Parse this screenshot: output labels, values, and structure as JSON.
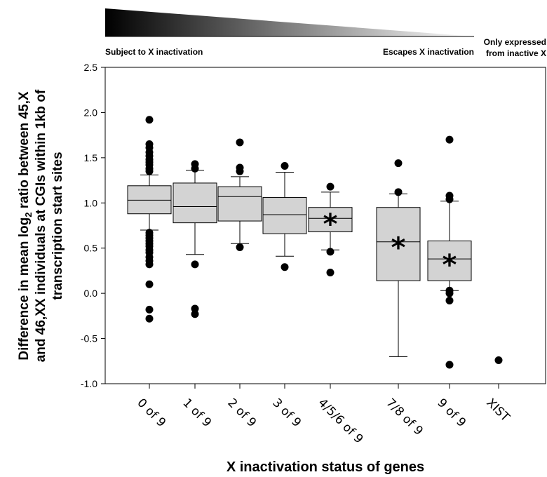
{
  "gradient_bar": {
    "left_label": "Subject to X inactivation",
    "right_label": "Escapes X inactivation",
    "far_right_line1": "Only expressed",
    "far_right_line2": "from inactive X",
    "color_start": "#000000",
    "color_end": "#ffffff"
  },
  "chart_data": {
    "type": "box",
    "ylabel_line1_prefix": "Difference in mean log",
    "ylabel_line1_sub": "2",
    "ylabel_line1_suffix": " ratio between 45,X",
    "ylabel_line2": "and 46,XX individuals at CGIs within 1kb of",
    "ylabel_line3": "transcription start sites",
    "xlabel": "X inactivation status of genes",
    "ylim": [
      -1.0,
      2.5
    ],
    "yticks": [
      "2.5",
      "2.0",
      "1.5",
      "1.0",
      "0.5",
      "0.0",
      "-0.5",
      "-1.0"
    ],
    "ytick_values": [
      2.5,
      2.0,
      1.5,
      1.0,
      0.5,
      0.0,
      -0.5,
      -1.0
    ],
    "categories": [
      "0 of 9",
      "1 of 9",
      "2 of 9",
      "3 of 9",
      "4/5/6 of 9",
      "7/8 of 9",
      "9 of 9",
      "XIST"
    ],
    "box_color": "#d3d3d3",
    "boxes": [
      {
        "category": "0 of 9",
        "whisker_low": 0.7,
        "q1": 0.88,
        "median": 1.03,
        "q3": 1.19,
        "whisker_high": 1.31,
        "significant": false,
        "outliers": [
          1.92,
          1.65,
          1.61,
          1.56,
          1.52,
          1.48,
          1.45,
          1.42,
          1.38,
          1.35,
          0.67,
          0.64,
          0.61,
          0.58,
          0.55,
          0.52,
          0.48,
          0.45,
          0.4,
          0.36,
          0.32,
          0.1,
          -0.18,
          -0.28
        ]
      },
      {
        "category": "1 of 9",
        "whisker_low": 0.43,
        "q1": 0.78,
        "median": 0.96,
        "q3": 1.22,
        "whisker_high": 1.36,
        "significant": false,
        "outliers": [
          1.43,
          1.38,
          0.32,
          -0.17,
          -0.23
        ]
      },
      {
        "category": "2 of 9",
        "whisker_low": 0.55,
        "q1": 0.8,
        "median": 1.07,
        "q3": 1.18,
        "whisker_high": 1.29,
        "significant": false,
        "outliers": [
          1.67,
          1.39,
          1.35,
          0.51
        ]
      },
      {
        "category": "3 of 9",
        "whisker_low": 0.41,
        "q1": 0.66,
        "median": 0.87,
        "q3": 1.06,
        "whisker_high": 1.34,
        "significant": false,
        "outliers": [
          1.41,
          0.29
        ]
      },
      {
        "category": "4/5/6 of 9",
        "whisker_low": 0.48,
        "q1": 0.68,
        "median": 0.83,
        "q3": 0.95,
        "whisker_high": 1.12,
        "significant": true,
        "outliers": [
          1.18,
          0.46,
          0.23
        ]
      },
      {
        "category": "7/8 of 9",
        "whisker_low": -0.7,
        "q1": 0.14,
        "median": 0.57,
        "q3": 0.95,
        "whisker_high": 1.1,
        "significant": true,
        "outliers": [
          1.44,
          1.12
        ]
      },
      {
        "category": "9 of 9",
        "whisker_low": 0.03,
        "q1": 0.14,
        "median": 0.38,
        "q3": 0.58,
        "whisker_high": 1.02,
        "significant": true,
        "outliers": [
          1.7,
          1.08,
          1.04,
          0.03,
          0.0,
          -0.08,
          -0.79
        ]
      },
      {
        "category": "XIST",
        "point": -0.74
      }
    ],
    "significance_marker": "*",
    "grid": false
  }
}
